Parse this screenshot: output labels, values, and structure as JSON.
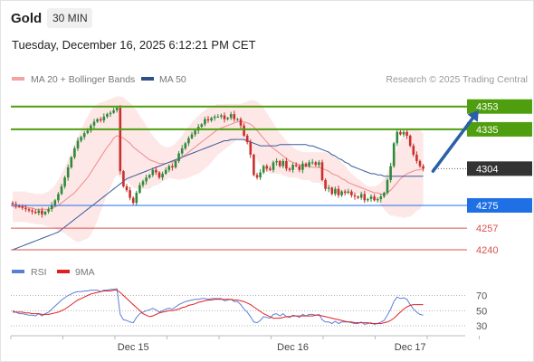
{
  "header": {
    "instrument": "Gold",
    "timeframe": "30 MIN",
    "timestamp": "Tuesday, December 16, 2025 6:12:21 PM CET"
  },
  "legend": {
    "bollinger": "MA 20 + Bollinger Bands",
    "ma50": "MA 50",
    "credit": "Research © 2025 Trading Central"
  },
  "rsi_legend": {
    "rsi": "RSI",
    "ma9": "9MA"
  },
  "colors": {
    "up": "#2f8a3a",
    "down": "#c9302c",
    "band_fill": "#fde3e3",
    "ma20": "#ef8c8c",
    "ma50": "#3a5d9c",
    "green_level": "#4f9e0f",
    "blue_level": "#1f6fe5",
    "red_level": "#d9534f",
    "price_tag": "#333333",
    "arrow": "#2b5fa8",
    "rsi": "#5b7fd6",
    "rsi_ma": "#e02020"
  },
  "chart_data": [
    {
      "type": "candlestick",
      "title": "Gold 30 MIN",
      "y_ticks": [
        4240,
        4257,
        4275,
        4304,
        4335,
        4353
      ],
      "ylim": [
        4232,
        4372
      ],
      "x_ticks": [
        "Dec 15",
        "Dec 16",
        "Dec 17"
      ],
      "x_tick_index": [
        37,
        86,
        122
      ],
      "current_price": 4304,
      "levels": [
        {
          "value": 4353,
          "label": "4353",
          "kind": "resistance"
        },
        {
          "value": 4335,
          "label": "4335",
          "kind": "resistance"
        },
        {
          "value": 4304,
          "label": "4304",
          "kind": "price"
        },
        {
          "value": 4275,
          "label": "4275",
          "kind": "pivot"
        },
        {
          "value": 4257,
          "label": "4257",
          "kind": "support"
        },
        {
          "value": 4240,
          "label": "4240",
          "kind": "support"
        }
      ],
      "forecast_arrow": {
        "from_index": 129,
        "from": 4302,
        "to_index": 143,
        "to": 4350
      },
      "close": [
        4276,
        4275,
        4274,
        4273,
        4272,
        4271,
        4270,
        4269,
        4271,
        4268,
        4270,
        4272,
        4275,
        4279,
        4284,
        4290,
        4297,
        4305,
        4313,
        4320,
        4326,
        4329,
        4332,
        4334,
        4338,
        4341,
        4343,
        4342,
        4345,
        4347,
        4348,
        4350,
        4352,
        4302,
        4290,
        4287,
        4281,
        4277,
        4285,
        4291,
        4294,
        4297,
        4299,
        4303,
        4301,
        4297,
        4300,
        4303,
        4306,
        4305,
        4310,
        4316,
        4320,
        4324,
        4328,
        4331,
        4334,
        4337,
        4339,
        4343,
        4342,
        4344,
        4345,
        4345,
        4346,
        4343,
        4344,
        4347,
        4343,
        4343,
        4338,
        4330,
        4325,
        4315,
        4299,
        4297,
        4301,
        4306,
        4304,
        4303,
        4309,
        4310,
        4306,
        4310,
        4304,
        4303,
        4307,
        4306,
        4303,
        4308,
        4306,
        4309,
        4309,
        4307,
        4309,
        4295,
        4288,
        4289,
        4284,
        4288,
        4283,
        4286,
        4285,
        4286,
        4283,
        4282,
        4281,
        4284,
        4279,
        4280,
        4282,
        4279,
        4280,
        4282,
        4285,
        4295,
        4306,
        4324,
        4333,
        4331,
        4333,
        4330,
        4322,
        4315,
        4310,
        4306,
        4304
      ],
      "ma20": [
        4274,
        4274,
        4274,
        4274,
        4274,
        4273,
        4273,
        4272,
        4272,
        4272,
        4272,
        4272,
        4273,
        4274,
        4275,
        4277,
        4279,
        4281,
        4283,
        4285,
        4288,
        4291,
        4294,
        4297,
        4301,
        4305,
        4309,
        4313,
        4317,
        4321,
        4324,
        4328,
        4330,
        4329,
        4328,
        4326,
        4324,
        4321,
        4319,
        4317,
        4315,
        4313,
        4311,
        4310,
        4309,
        4308,
        4308,
        4308,
        4309,
        4309,
        4310,
        4311,
        4313,
        4315,
        4317,
        4319,
        4321,
        4323,
        4325,
        4327,
        4329,
        4331,
        4333,
        4335,
        4336,
        4337,
        4338,
        4339,
        4340,
        4341,
        4341,
        4341,
        4340,
        4339,
        4337,
        4334,
        4331,
        4328,
        4325,
        4322,
        4320,
        4318,
        4316,
        4314,
        4312,
        4310,
        4309,
        4308,
        4307,
        4306,
        4306,
        4306,
        4305,
        4305,
        4305,
        4304,
        4303,
        4302,
        4300,
        4299,
        4298,
        4296,
        4295,
        4293,
        4292,
        4291,
        4290,
        4289,
        4288,
        4287,
        4286,
        4285,
        4285,
        4284,
        4284,
        4285,
        4287,
        4290,
        4293,
        4296,
        4298,
        4300,
        4301,
        4302,
        4303,
        4303,
        4304
      ],
      "bb_upper": [
        4286,
        4286,
        4286,
        4286,
        4286,
        4285,
        4285,
        4284,
        4284,
        4284,
        4285,
        4286,
        4288,
        4291,
        4295,
        4300,
        4305,
        4311,
        4317,
        4323,
        4329,
        4335,
        4340,
        4345,
        4350,
        4353,
        4355,
        4356,
        4357,
        4358,
        4359,
        4360,
        4361,
        4361,
        4360,
        4358,
        4356,
        4353,
        4350,
        4346,
        4342,
        4338,
        4334,
        4330,
        4327,
        4324,
        4322,
        4321,
        4321,
        4322,
        4324,
        4327,
        4330,
        4334,
        4337,
        4340,
        4343,
        4346,
        4348,
        4350,
        4352,
        4353,
        4354,
        4355,
        4355,
        4355,
        4355,
        4355,
        4355,
        4355,
        4355,
        4356,
        4357,
        4358,
        4358,
        4357,
        4355,
        4352,
        4348,
        4344,
        4340,
        4336,
        4332,
        4329,
        4326,
        4323,
        4321,
        4319,
        4318,
        4317,
        4317,
        4317,
        4317,
        4317,
        4317,
        4317,
        4317,
        4316,
        4315,
        4313,
        4311,
        4309,
        4306,
        4303,
        4300,
        4298,
        4296,
        4294,
        4292,
        4290,
        4290,
        4290,
        4291,
        4293,
        4296,
        4301,
        4307,
        4313,
        4320,
        4326,
        4331,
        4334,
        4336,
        4336,
        4335,
        4334,
        4332
      ],
      "bb_lower": [
        4262,
        4262,
        4262,
        4262,
        4262,
        4261,
        4261,
        4260,
        4260,
        4260,
        4259,
        4258,
        4258,
        4257,
        4255,
        4254,
        4253,
        4251,
        4249,
        4247,
        4246,
        4247,
        4248,
        4249,
        4252,
        4257,
        4263,
        4270,
        4277,
        4284,
        4289,
        4296,
        4299,
        4297,
        4296,
        4294,
        4292,
        4289,
        4288,
        4288,
        4288,
        4288,
        4288,
        4290,
        4291,
        4292,
        4294,
        4295,
        4297,
        4296,
        4296,
        4295,
        4296,
        4296,
        4297,
        4298,
        4299,
        4300,
        4302,
        4304,
        4306,
        4309,
        4312,
        4315,
        4317,
        4319,
        4321,
        4323,
        4325,
        4327,
        4327,
        4326,
        4323,
        4320,
        4316,
        4311,
        4307,
        4304,
        4302,
        4300,
        4300,
        4300,
        4300,
        4299,
        4298,
        4297,
        4297,
        4297,
        4296,
        4295,
        4295,
        4295,
        4293,
        4293,
        4293,
        4291,
        4289,
        4288,
        4285,
        4285,
        4285,
        4283,
        4284,
        4283,
        4284,
        4284,
        4284,
        4284,
        4284,
        4284,
        4282,
        4280,
        4279,
        4275,
        4272,
        4269,
        4267,
        4267,
        4266,
        4266,
        4265,
        4266,
        4266,
        4268,
        4271,
        4272,
        4276
      ],
      "ma50": [
        4240,
        4241,
        4242,
        4243,
        4244,
        4245,
        4246,
        4247,
        4248,
        4249,
        4250,
        4251,
        4252,
        4253,
        4254,
        4256,
        4258,
        4260,
        4262,
        4264,
        4266,
        4268,
        4270,
        4272,
        4274,
        4276,
        4278,
        4280,
        4282,
        4284,
        4286,
        4288,
        4290,
        4292,
        4294,
        4296,
        4297,
        4298,
        4299,
        4300,
        4301,
        4302,
        4303,
        4304,
        4305,
        4306,
        4307,
        4308,
        4309,
        4310,
        4311,
        4312,
        4313,
        4314,
        4315,
        4316,
        4317,
        4318,
        4319,
        4320,
        4321,
        4322,
        4323,
        4324,
        4325,
        4326,
        4326,
        4327,
        4327,
        4327,
        4327,
        4327,
        4326,
        4325,
        4324,
        4323,
        4322,
        4322,
        4322,
        4322,
        4322,
        4322,
        4323,
        4323,
        4323,
        4323,
        4323,
        4323,
        4323,
        4323,
        4323,
        4322,
        4322,
        4321,
        4320,
        4319,
        4318,
        4317,
        4315,
        4314,
        4312,
        4311,
        4309,
        4308,
        4306,
        4305,
        4304,
        4303,
        4302,
        4301,
        4300,
        4300,
        4299,
        4299,
        4298,
        4298,
        4298,
        4298,
        4298,
        4298,
        4298,
        4298,
        4298,
        4298,
        4298,
        4298,
        4298
      ]
    },
    {
      "type": "line",
      "title": "RSI",
      "y_ticks": [
        30,
        50,
        70
      ],
      "ylim": [
        20,
        80
      ],
      "series": [
        {
          "name": "RSI",
          "values": [
            50,
            48,
            46,
            46,
            45,
            44,
            44,
            43,
            46,
            43,
            46,
            48,
            52,
            56,
            60,
            64,
            67,
            70,
            72,
            74,
            75,
            75,
            76,
            76,
            77,
            77,
            77,
            75,
            77,
            77,
            78,
            78,
            79,
            45,
            38,
            37,
            35,
            34,
            41,
            46,
            48,
            50,
            51,
            53,
            51,
            48,
            50,
            52,
            53,
            52,
            55,
            58,
            60,
            62,
            63,
            64,
            65,
            65,
            66,
            66,
            65,
            66,
            66,
            66,
            66,
            63,
            64,
            65,
            62,
            62,
            58,
            52,
            48,
            42,
            35,
            34,
            37,
            42,
            41,
            40,
            45,
            46,
            43,
            46,
            42,
            41,
            44,
            43,
            41,
            45,
            43,
            45,
            45,
            44,
            45,
            38,
            35,
            35,
            33,
            36,
            33,
            35,
            35,
            35,
            34,
            33,
            33,
            35,
            32,
            33,
            34,
            32,
            33,
            35,
            37,
            44,
            52,
            62,
            68,
            66,
            67,
            65,
            58,
            52,
            48,
            45,
            44
          ]
        },
        {
          "name": "9MA",
          "values": [
            48,
            48,
            48,
            48,
            47,
            47,
            46,
            46,
            46,
            45,
            45,
            45,
            46,
            47,
            48,
            50,
            52,
            55,
            58,
            61,
            64,
            66,
            68,
            70,
            72,
            73,
            74,
            75,
            76,
            76,
            76,
            77,
            77,
            74,
            70,
            66,
            62,
            58,
            54,
            50,
            46,
            44,
            42,
            43,
            45,
            47,
            48,
            49,
            50,
            50,
            51,
            52,
            54,
            55,
            57,
            58,
            59,
            61,
            62,
            63,
            64,
            64,
            65,
            65,
            65,
            65,
            65,
            65,
            64,
            64,
            63,
            62,
            60,
            58,
            55,
            52,
            49,
            46,
            44,
            42,
            40,
            40,
            40,
            41,
            42,
            42,
            43,
            43,
            43,
            43,
            43,
            43,
            43,
            44,
            44,
            43,
            42,
            41,
            40,
            39,
            38,
            37,
            36,
            35,
            35,
            34,
            34,
            34,
            34,
            34,
            33,
            33,
            33,
            33,
            34,
            35,
            37,
            40,
            44,
            48,
            52,
            55,
            57,
            58,
            58,
            58,
            58
          ]
        }
      ]
    }
  ]
}
